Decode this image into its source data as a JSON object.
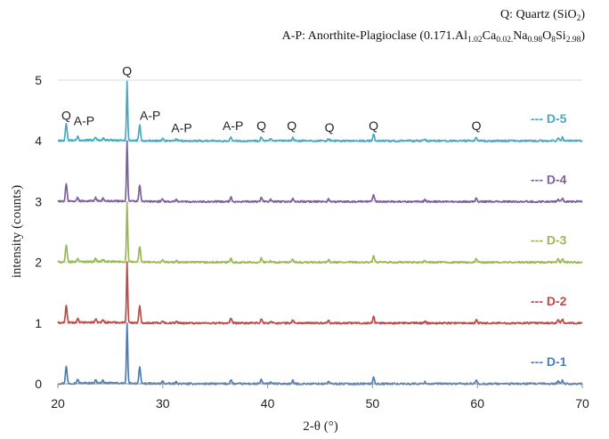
{
  "header": {
    "line1_prefix": "Q: Quartz (SiO",
    "line1_sub": "2",
    "line1_suffix": ")",
    "line2_prefix": "A-P: Anorthite-Plagioclase  (0.171.Al",
    "line2_segments": [
      {
        "text": "1.02",
        "sub": true
      },
      {
        "text": "Ca",
        "sub": false
      },
      {
        "text": "0.02.",
        "sub": true
      },
      {
        "text": "Na",
        "sub": false
      },
      {
        "text": "0.98",
        "sub": true
      },
      {
        "text": "O",
        "sub": false
      },
      {
        "text": "8",
        "sub": true
      },
      {
        "text": "Si",
        "sub": false
      },
      {
        "text": "2.98",
        "sub": true
      },
      {
        "text": ")",
        "sub": false
      }
    ]
  },
  "chart_data": {
    "type": "line",
    "xlabel": "2-θ (°)",
    "ylabel": "intensity (counts)",
    "xlim": [
      20,
      70
    ],
    "ylim": [
      0,
      5
    ],
    "x_ticks": [
      20,
      30,
      40,
      50,
      60,
      70
    ],
    "y_ticks": [
      0,
      1,
      2,
      3,
      4,
      5
    ],
    "grid": "horizontal",
    "legend_placement": "right, beside each trace",
    "peaks": [
      {
        "two_theta": 20.8,
        "height": 0.28
      },
      {
        "two_theta": 21.9,
        "height": 0.06
      },
      {
        "two_theta": 23.6,
        "height": 0.05
      },
      {
        "two_theta": 24.3,
        "height": 0.04
      },
      {
        "two_theta": 26.6,
        "height": 1.0
      },
      {
        "two_theta": 27.8,
        "height": 0.27
      },
      {
        "two_theta": 30.0,
        "height": 0.04
      },
      {
        "two_theta": 31.3,
        "height": 0.03
      },
      {
        "two_theta": 36.5,
        "height": 0.07
      },
      {
        "two_theta": 39.4,
        "height": 0.07
      },
      {
        "two_theta": 40.3,
        "height": 0.03
      },
      {
        "two_theta": 42.4,
        "height": 0.05
      },
      {
        "two_theta": 45.8,
        "height": 0.04
      },
      {
        "two_theta": 50.1,
        "height": 0.11
      },
      {
        "two_theta": 55.0,
        "height": 0.03
      },
      {
        "two_theta": 59.9,
        "height": 0.06
      },
      {
        "two_theta": 67.7,
        "height": 0.05
      },
      {
        "two_theta": 68.1,
        "height": 0.06
      }
    ],
    "series": [
      {
        "name": "--- D-1",
        "offset": 0,
        "color": "#4a7ebb",
        "peak_scale": 1.0
      },
      {
        "name": "--- D-2",
        "offset": 1,
        "color": "#be4b48",
        "peak_scale": 1.0
      },
      {
        "name": "--- D-3",
        "offset": 2,
        "color": "#98b954",
        "peak_scale": 0.97
      },
      {
        "name": "--- D-4",
        "offset": 3,
        "color": "#7d60a0",
        "peak_scale": 1.0
      },
      {
        "name": "--- D-5",
        "offset": 4,
        "color": "#46aac5",
        "peak_scale": 0.97
      }
    ],
    "annotations": [
      {
        "label": "Q",
        "two_theta": 20.8,
        "level": 4.35
      },
      {
        "label": "A-P",
        "two_theta": 22.5,
        "level": 4.26
      },
      {
        "label": "Q",
        "two_theta": 26.6,
        "level": 5.08
      },
      {
        "label": "A-P",
        "two_theta": 28.8,
        "level": 4.35
      },
      {
        "label": "A-P",
        "two_theta": 31.8,
        "level": 4.14
      },
      {
        "label": "A-P",
        "two_theta": 36.7,
        "level": 4.18
      },
      {
        "label": "Q",
        "two_theta": 39.4,
        "level": 4.18
      },
      {
        "label": "Q",
        "two_theta": 42.3,
        "level": 4.18
      },
      {
        "label": "Q",
        "two_theta": 45.9,
        "level": 4.15
      },
      {
        "label": "Q",
        "two_theta": 50.1,
        "level": 4.18
      },
      {
        "label": "Q",
        "two_theta": 59.9,
        "level": 4.18
      }
    ]
  }
}
